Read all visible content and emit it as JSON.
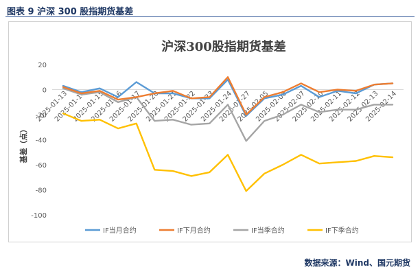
{
  "figure_caption": "图表 9    沪深 300 股指期货基差",
  "source": "数据来源：Wind、国元期货",
  "colors": {
    "IF_current": "#5b9bd5",
    "IF_next": "#ed7d31",
    "IF_quarter": "#a5a5a5",
    "IF_next_quarter": "#ffc000",
    "axis_text": "#595959",
    "grid": "#d9d9d9"
  },
  "chart_data": {
    "type": "line",
    "title": "沪深300股指期货基差",
    "xlabel": "",
    "ylabel": "基差（点）",
    "ylim": [
      -100,
      20
    ],
    "yticks": [
      20,
      0,
      -20,
      -40,
      -60,
      -80,
      -100
    ],
    "legend_position": "bottom",
    "grid": false,
    "categories": [
      "2025-01-13",
      "2025-01-14",
      "2025-01-15",
      "2025-01-16",
      "2025-01-17",
      "2025-01-20",
      "2025-01-21",
      "2025-01-22",
      "2025-01-23",
      "2025-01-24",
      "2025-01-27",
      "2025-02-05",
      "2025-02-06",
      "2025-02-07",
      "2025-02-10",
      "2025-02-11",
      "2025-02-12",
      "2025-02-13",
      "2025-02-14"
    ],
    "series": [
      {
        "name": "IF当月合约",
        "color": "#5b9bd5",
        "values": [
          3,
          -2,
          1,
          -6,
          6,
          -3,
          -3,
          -7,
          -7,
          8,
          -21,
          -7,
          -4,
          3,
          -6,
          -1,
          -3,
          4,
          5
        ]
      },
      {
        "name": "IF下月合约",
        "color": "#ed7d31",
        "values": [
          2,
          -3,
          -1,
          -8,
          -6,
          -3,
          -1,
          -7,
          -6,
          10,
          -20,
          -6,
          -2,
          5,
          -2,
          0,
          -1,
          4,
          5
        ]
      },
      {
        "name": "IF当季合约",
        "color": "#a5a5a5",
        "values": [
          1,
          -4,
          -2,
          -10,
          -6,
          -25,
          -24,
          -28,
          -27,
          -12,
          -41,
          -25,
          -20,
          -12,
          -18,
          -16,
          -16,
          -12,
          -12
        ]
      },
      {
        "name": "IF下季合约",
        "color": "#ffc000",
        "values": [
          -19,
          -25,
          -24,
          -31,
          -27,
          -64,
          -65,
          -69,
          -66,
          -52,
          -81,
          -67,
          -60,
          -52,
          -59,
          -58,
          -57,
          -53,
          -54
        ]
      }
    ]
  }
}
